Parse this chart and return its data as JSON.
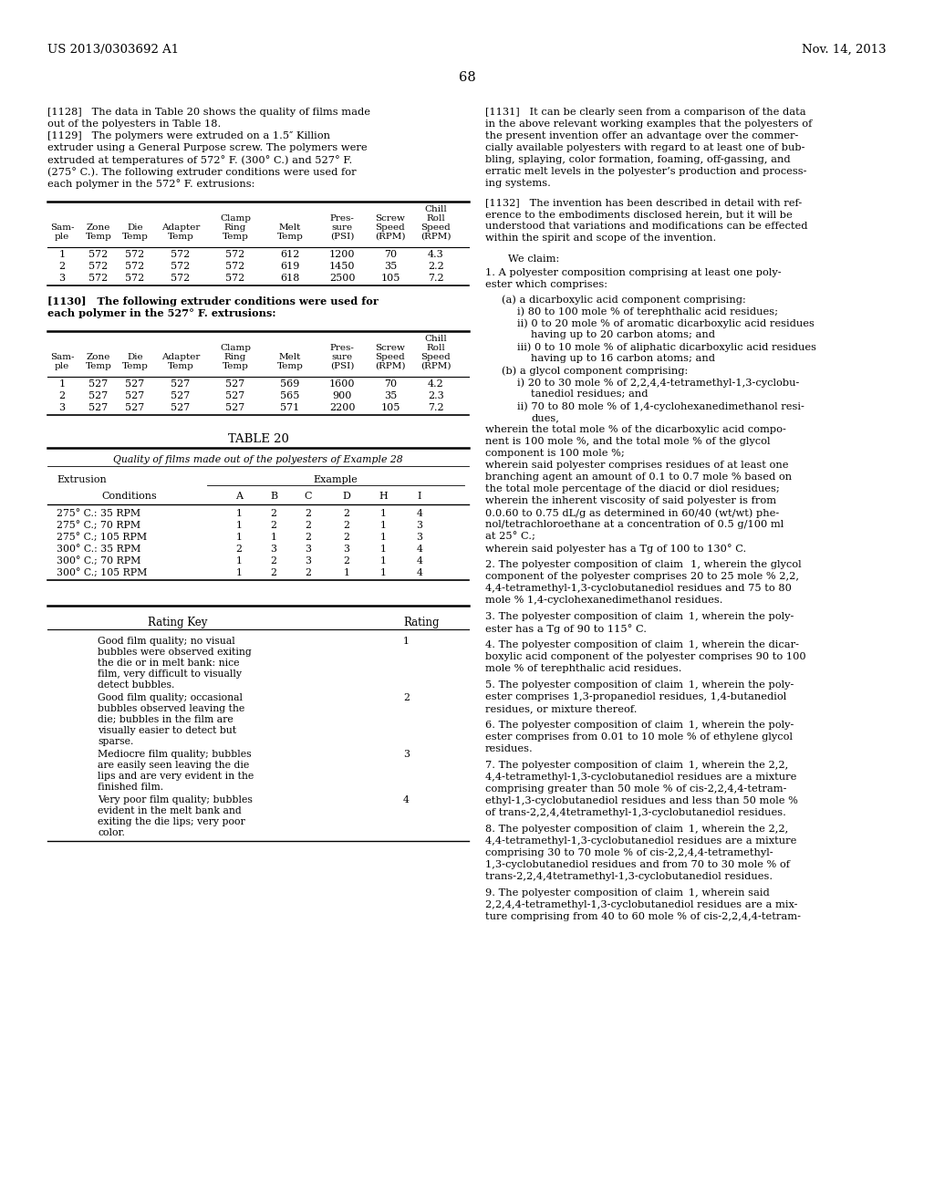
{
  "page_number": "68",
  "patent_number": "US 2013/0303692 A1",
  "patent_date": "Nov. 14, 2013",
  "background_color": "#ffffff",
  "table_572_data": [
    [
      "1",
      "572",
      "572",
      "572",
      "572",
      "612",
      "1200",
      "70",
      "4.3"
    ],
    [
      "2",
      "572",
      "572",
      "572",
      "572",
      "619",
      "1450",
      "35",
      "2.2"
    ],
    [
      "3",
      "572",
      "572",
      "572",
      "572",
      "618",
      "2500",
      "105",
      "7.2"
    ]
  ],
  "table_527_data": [
    [
      "1",
      "527",
      "527",
      "527",
      "527",
      "569",
      "1600",
      "70",
      "4.2"
    ],
    [
      "2",
      "527",
      "527",
      "527",
      "527",
      "565",
      "900",
      "35",
      "2.3"
    ],
    [
      "3",
      "527",
      "527",
      "527",
      "527",
      "571",
      "2200",
      "105",
      "7.2"
    ]
  ],
  "table20_data": [
    [
      "275° C.: 35 RPM",
      "1",
      "2",
      "2",
      "2",
      "1",
      "4"
    ],
    [
      "275° C.; 70 RPM",
      "1",
      "2",
      "2",
      "2",
      "1",
      "3"
    ],
    [
      "275° C.; 105 RPM",
      "1",
      "1",
      "2",
      "2",
      "1",
      "3"
    ],
    [
      "300° C.: 35 RPM",
      "2",
      "3",
      "3",
      "3",
      "1",
      "4"
    ],
    [
      "300° C.; 70 RPM",
      "1",
      "2",
      "3",
      "2",
      "1",
      "4"
    ],
    [
      "300° C.; 105 RPM",
      "1",
      "2",
      "2",
      "1",
      "1",
      "4"
    ]
  ],
  "rating_key_entries": [
    {
      "description": "Good film quality; no visual\nbubbles were observed exiting\nthe die or in melt bank: nice\nfilm, very difficult to visually\ndetect bubbles.",
      "rating": "1"
    },
    {
      "description": "Good film quality; occasional\nbubbles observed leaving the\ndie; bubbles in the film are\nvisually easier to detect but\nsparse.",
      "rating": "2"
    },
    {
      "description": "Mediocre film quality; bubbles\nare easily seen leaving the die\nlips and are very evident in the\nfinished film.",
      "rating": "3"
    },
    {
      "description": "Very poor film quality; bubbles\nevident in the melt bank and\nexiting the die lips; very poor\ncolor.",
      "rating": "4"
    }
  ]
}
